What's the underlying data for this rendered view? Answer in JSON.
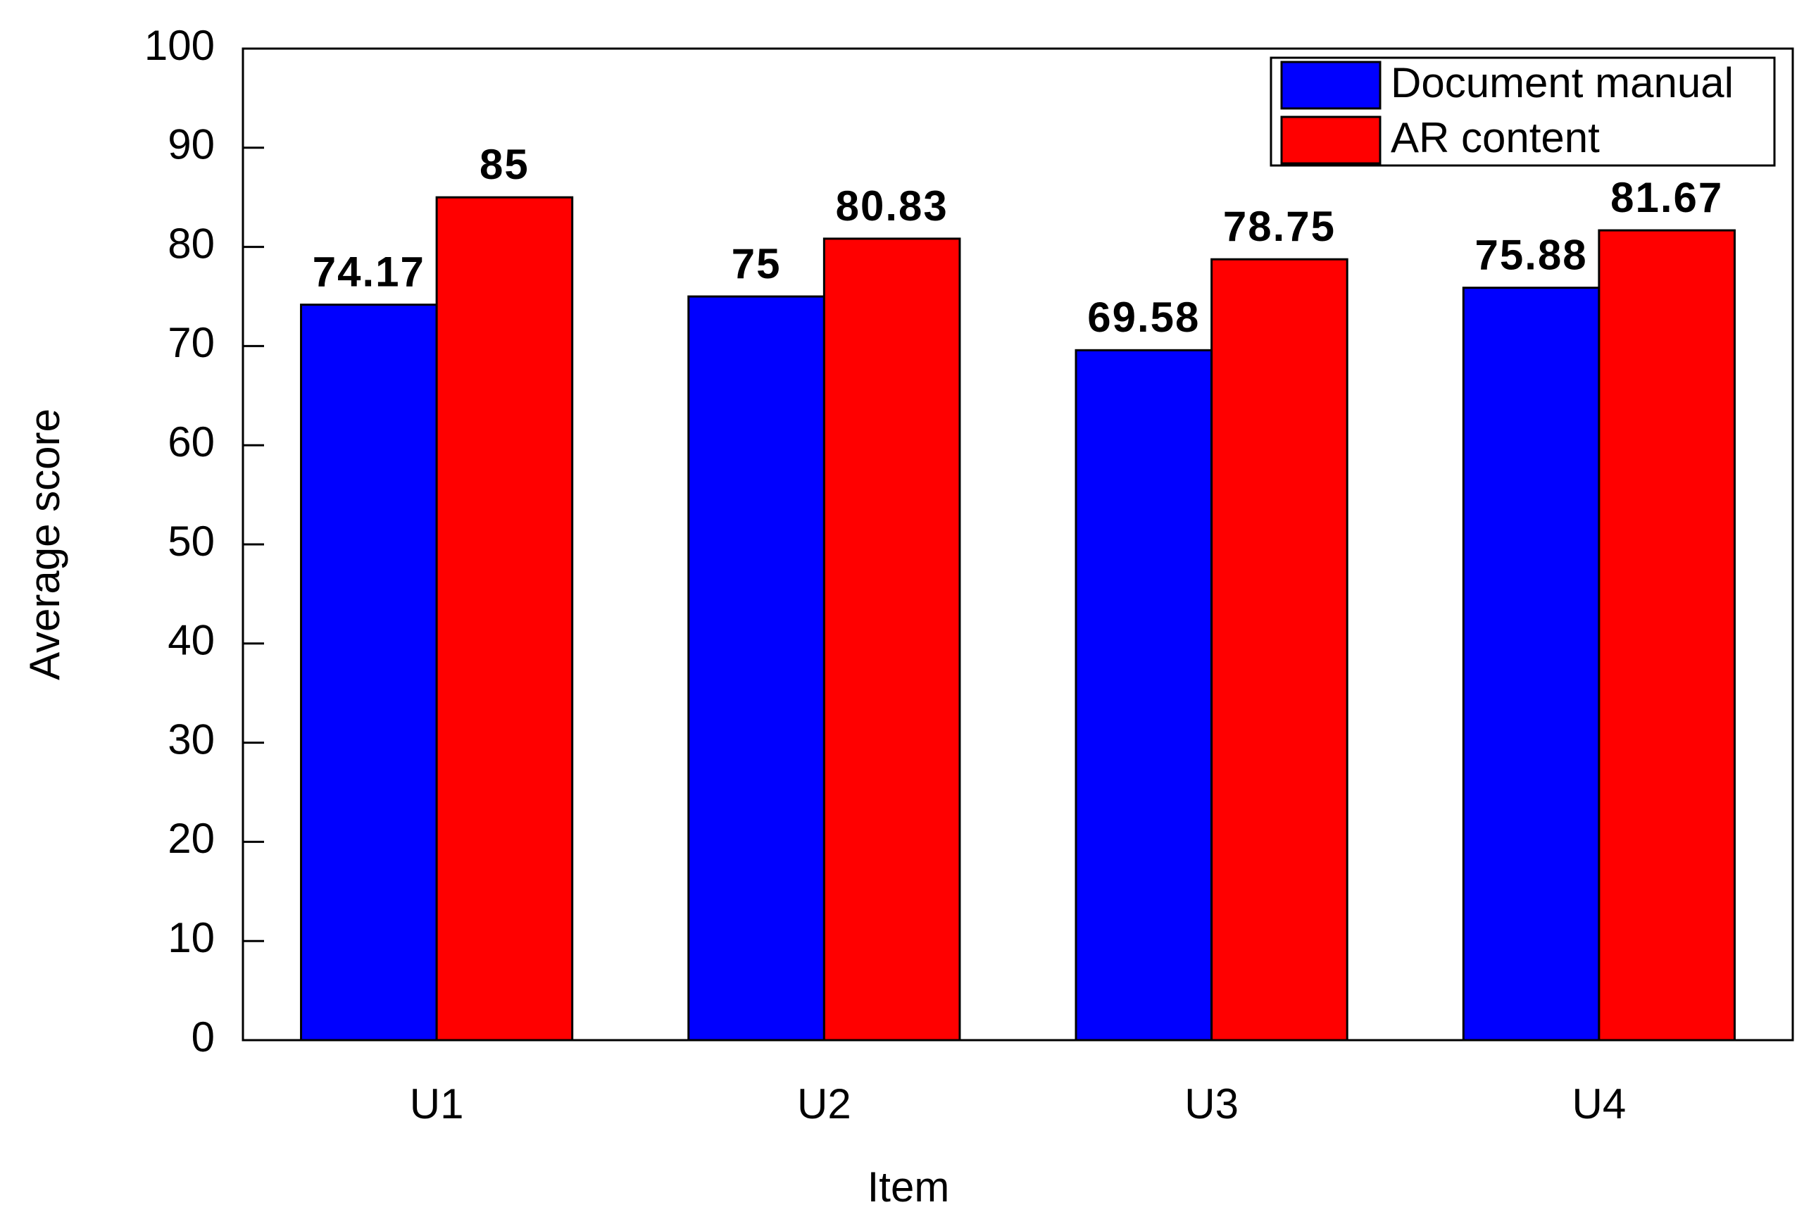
{
  "chart_data": {
    "type": "bar",
    "x_label": "Item",
    "y_label": "Average score",
    "categories": [
      "U1",
      "U2",
      "U3",
      "U4"
    ],
    "series": [
      {
        "name": "Document manual",
        "color": "#0000ff",
        "values": [
          74.17,
          75,
          69.58,
          75.88
        ]
      },
      {
        "name": "AR content",
        "color": "#ff0000",
        "values": [
          85,
          80.83,
          78.75,
          81.67
        ]
      }
    ],
    "ylim": [
      0,
      100
    ],
    "yticks": [
      0,
      10,
      20,
      30,
      40,
      50,
      60,
      70,
      80,
      90,
      100
    ],
    "grid": false,
    "legend": "top-right"
  }
}
